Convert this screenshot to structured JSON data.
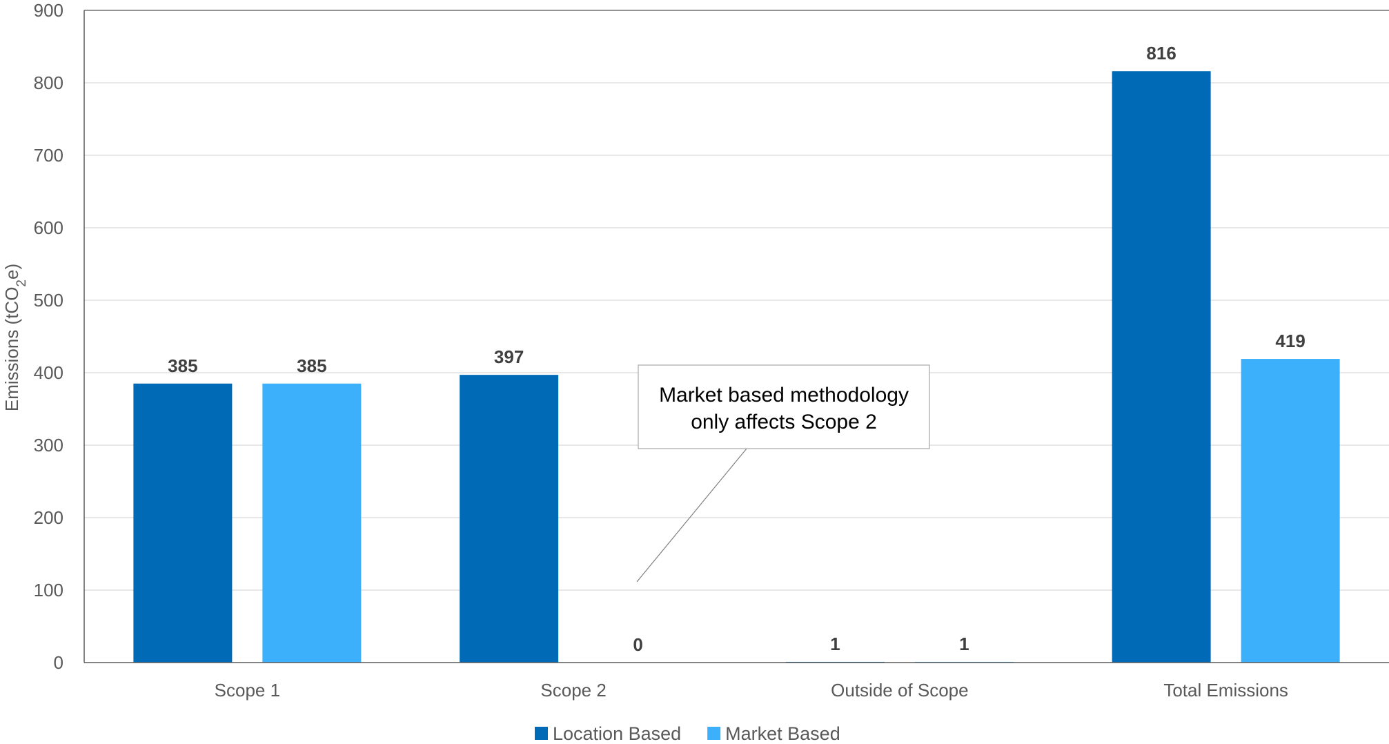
{
  "chart_data": {
    "type": "bar",
    "title": "",
    "xlabel": "",
    "ylabel_parts": {
      "before": "Emissions (tCO",
      "sub": "2",
      "after": "e)"
    },
    "ylim": [
      0,
      900
    ],
    "yticks": [
      "0",
      "100",
      "200",
      "300",
      "400",
      "500",
      "600",
      "700",
      "800",
      "900"
    ],
    "grid": true,
    "categories": [
      "Scope 1",
      "Scope 2",
      "Outside of Scope",
      "Total Emissions"
    ],
    "series": [
      {
        "name": "Location Based",
        "color": "#006ab7",
        "values": [
          385,
          397,
          1,
          816
        ],
        "labels": [
          "385",
          "397",
          "1",
          "816"
        ]
      },
      {
        "name": "Market Based",
        "color": "#3cb0fb",
        "values": [
          385,
          0,
          1,
          419
        ],
        "labels": [
          "385",
          "0",
          "1",
          "419"
        ]
      }
    ],
    "legend_position": "bottom",
    "annotation": {
      "lines": [
        "Market based methodology",
        "only affects Scope 2"
      ],
      "points_to": "Scope 2 / Market Based"
    }
  }
}
